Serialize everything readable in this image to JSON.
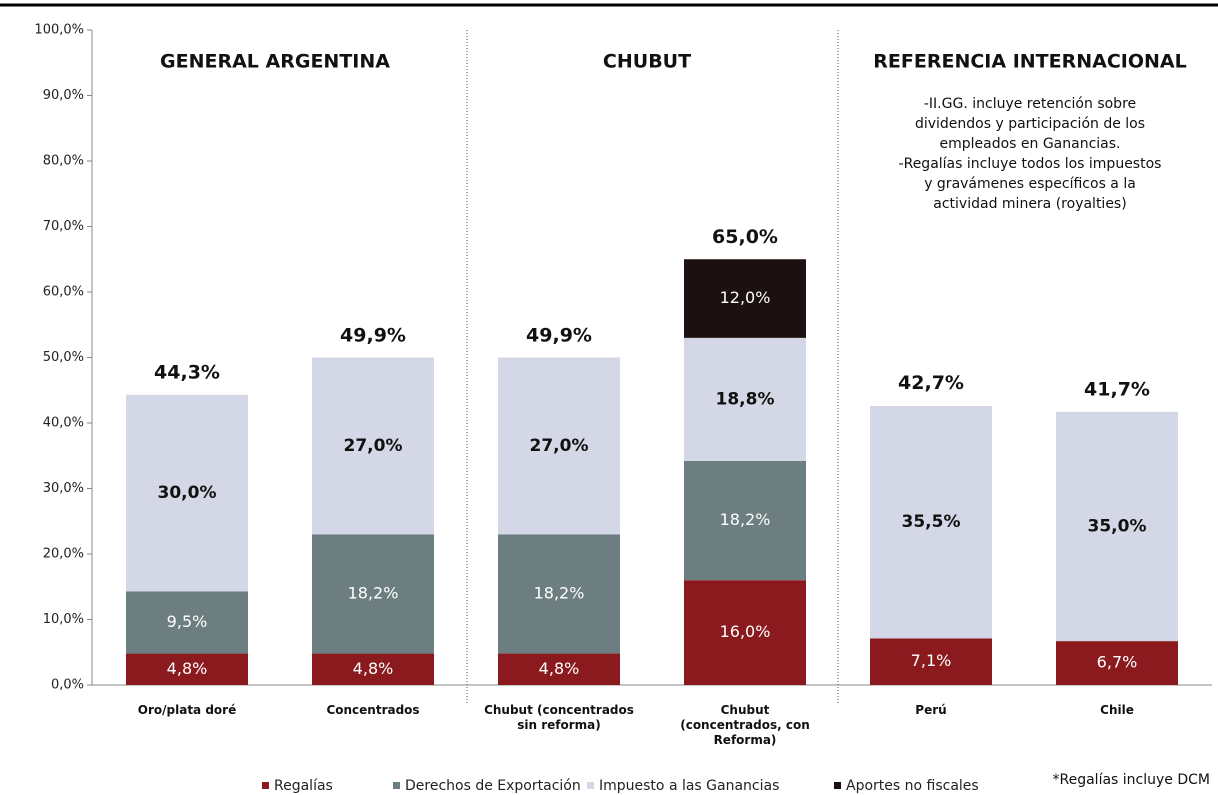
{
  "chart_data": {
    "type": "stacked_bar",
    "sections": [
      "GENERAL ARGENTINA",
      "CHUBUT",
      "REFERENCIA INTERNACIONAL"
    ],
    "note": [
      "-II.GG. incluye retención sobre",
      "dividendos y participación de los",
      "empleados en Ganancias.",
      "-Regalías incluye todos los impuestos",
      "y gravámenes específicos a la",
      "actividad minera (royalties)"
    ],
    "footnote": "*Regalías incluye DCM",
    "categories": [
      "Oro/plata doré",
      "Concentrados",
      "Chubut (concentrados sin reforma)",
      "Chubut (concentrados, con Reforma)",
      "Perú",
      "Chile"
    ],
    "series": [
      {
        "name": "Regalías",
        "color": "#8b1a1e",
        "label_color": "#ffffff",
        "values": [
          4.8,
          4.8,
          4.8,
          16.0,
          7.1,
          6.7
        ],
        "value_labels": [
          "4,8%",
          "4,8%",
          "4,8%",
          "16,0%",
          "7,1%",
          "6,7%"
        ]
      },
      {
        "name": "Derechos de Exportación",
        "color": "#6c7e7f",
        "label_color": "#ffffff",
        "values": [
          9.5,
          18.2,
          18.2,
          18.2,
          null,
          null
        ],
        "value_labels": [
          "9,5%",
          "18,2%",
          "18,2%",
          "18,2%",
          null,
          null
        ]
      },
      {
        "name": "Impuesto a las Ganancias",
        "color": "#d4d7e5",
        "label_color": "#111111",
        "values": [
          30.0,
          27.0,
          27.0,
          18.8,
          35.5,
          35.0
        ],
        "value_labels": [
          "30,0%",
          "27,0%",
          "27,0%",
          "18,8%",
          "35,5%",
          "35,0%"
        ]
      },
      {
        "name": "Aportes no fiscales",
        "color": "#1c1010",
        "label_color": "#ffffff",
        "values": [
          null,
          null,
          null,
          12.0,
          null,
          null
        ],
        "value_labels": [
          null,
          null,
          null,
          "12,0%",
          null,
          null
        ]
      }
    ],
    "totals": {
      "values": [
        44.3,
        49.9,
        49.9,
        65.0,
        42.7,
        41.7
      ],
      "value_labels": [
        "44,3%",
        "49,9%",
        "49,9%",
        "65,0%",
        "42,7%",
        "41,7%"
      ]
    },
    "ylim": [
      0,
      100
    ],
    "yticks": [
      {
        "value": 0,
        "label": "0,0%"
      },
      {
        "value": 10,
        "label": "10,0%"
      },
      {
        "value": 20,
        "label": "20,0%"
      },
      {
        "value": 30,
        "label": "30,0%"
      },
      {
        "value": 40,
        "label": "40,0%"
      },
      {
        "value": 50,
        "label": "50,0%"
      },
      {
        "value": 60,
        "label": "60,0%"
      },
      {
        "value": 70,
        "label": "70,0%"
      },
      {
        "value": 80,
        "label": "80,0%"
      },
      {
        "value": 90,
        "label": "90,0%"
      },
      {
        "value": 100,
        "label": "100,0%"
      }
    ]
  }
}
